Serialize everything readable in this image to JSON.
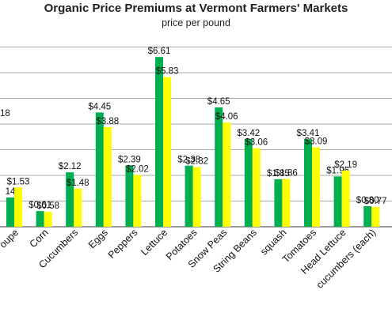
{
  "chart_data": {
    "type": "bar",
    "title": "Organic Price Premiums at Vermont Farmers' Markets",
    "subtitle": "price per pound",
    "categories": [
      "Cantaloupe",
      "Corn",
      "Cucumbers",
      "Eggs",
      "Peppers",
      "Lettuce",
      "Potatoes",
      "Snow Peas",
      "String Beans",
      "squash",
      "Tomatoes",
      "Head Lettuce",
      "cucumbers (each)"
    ],
    "category_labels": [
      "oupe",
      "Corn",
      "Cucumbers",
      "Eggs",
      "Peppers",
      "Lettuce",
      "Potatoes",
      "Snow Peas",
      "String Beans",
      "squash",
      "Tomatoes",
      "Head Lettuce",
      "cucumbers (each)"
    ],
    "series": [
      {
        "color": "#00b050",
        "values": [
          1.14,
          0.61,
          2.12,
          4.45,
          2.39,
          6.61,
          2.38,
          4.65,
          3.42,
          1.85,
          3.41,
          1.96,
          0.8
        ],
        "labels": [
          "14",
          "$0.61",
          "$2.12",
          "$4.45",
          "$2.39",
          "$6.61",
          "$2.38",
          "$4.65",
          "$3.42",
          "$1.85",
          "$3.41",
          "$1.96",
          "$0.80"
        ]
      },
      {
        "color": "#ffff00",
        "values": [
          1.53,
          0.58,
          1.48,
          3.88,
          2.02,
          5.83,
          2.32,
          4.06,
          3.06,
          1.86,
          3.09,
          2.19,
          0.77
        ],
        "labels": [
          "$1.53",
          "$0.58",
          "$1.48",
          "$3.88",
          "$2.02",
          "$5.83",
          "$2.32",
          "$4.06",
          "$3.06",
          "$1.86",
          "$3.09",
          "$2.19",
          "$0.77"
        ]
      }
    ],
    "partial_label": "18",
    "ylim": [
      0,
      7
    ],
    "grid": true,
    "legend": "none",
    "colors": {
      "gridline": "#8c8c8c",
      "axis": "#5a5a5a"
    }
  }
}
